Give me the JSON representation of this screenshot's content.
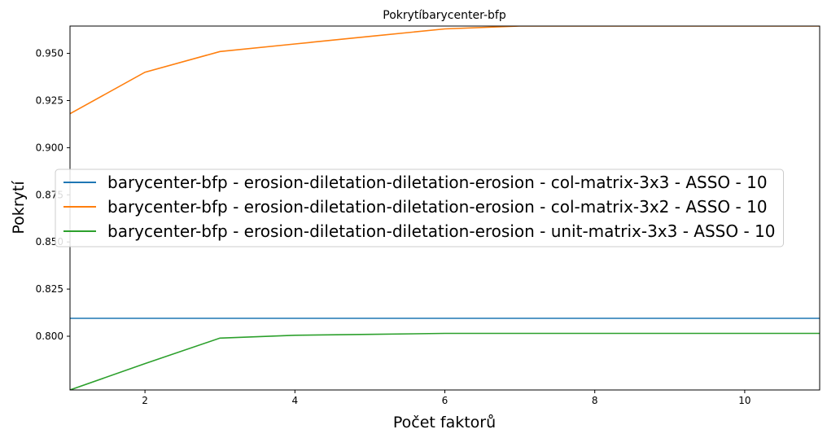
{
  "chart_data": {
    "type": "line",
    "title": "Pokrytíbarycenter-bfp",
    "xlabel": "Počet faktorů",
    "ylabel": "Pokrytí",
    "xlim": [
      1,
      11
    ],
    "ylim": [
      0.7715,
      0.9645
    ],
    "xticks": [
      2,
      4,
      6,
      8,
      10
    ],
    "yticks": [
      0.8,
      0.825,
      0.85,
      0.875,
      0.9,
      0.925,
      0.95
    ],
    "ytick_labels": [
      "0.800",
      "0.825",
      "0.850",
      "0.875",
      "0.900",
      "0.925",
      "0.950"
    ],
    "grid": false,
    "legend_position": "center",
    "series": [
      {
        "name": "barycenter-bfp - erosion-diletation-diletation-erosion - col-matrix-3x3 - ASSO - 10",
        "color": "#1f77b4",
        "x": [
          1,
          2,
          3,
          4,
          5,
          6,
          7,
          8,
          9,
          10,
          11
        ],
        "values": [
          0.8095,
          0.8095,
          0.8095,
          0.8095,
          0.8095,
          0.8095,
          0.8095,
          0.8095,
          0.8095,
          0.8095,
          0.8095
        ]
      },
      {
        "name": "barycenter-bfp - erosion-diletation-diletation-erosion - col-matrix-3x2 - ASSO - 10",
        "color": "#ff7f0e",
        "x": [
          1,
          2,
          3,
          4,
          5,
          6,
          7,
          8,
          9,
          10,
          11
        ],
        "values": [
          0.918,
          0.94,
          0.951,
          0.955,
          0.959,
          0.963,
          0.9645,
          0.9645,
          0.9645,
          0.9645,
          0.9645
        ]
      },
      {
        "name": "barycenter-bfp - erosion-diletation-diletation-erosion - unit-matrix-3x3 - ASSO - 10",
        "color": "#2ca02c",
        "x": [
          1,
          2,
          3,
          4,
          5,
          6,
          7,
          8,
          9,
          10,
          11
        ],
        "values": [
          0.7715,
          0.7855,
          0.799,
          0.8005,
          0.801,
          0.8015,
          0.8015,
          0.8015,
          0.8015,
          0.8015,
          0.8015
        ]
      }
    ]
  }
}
